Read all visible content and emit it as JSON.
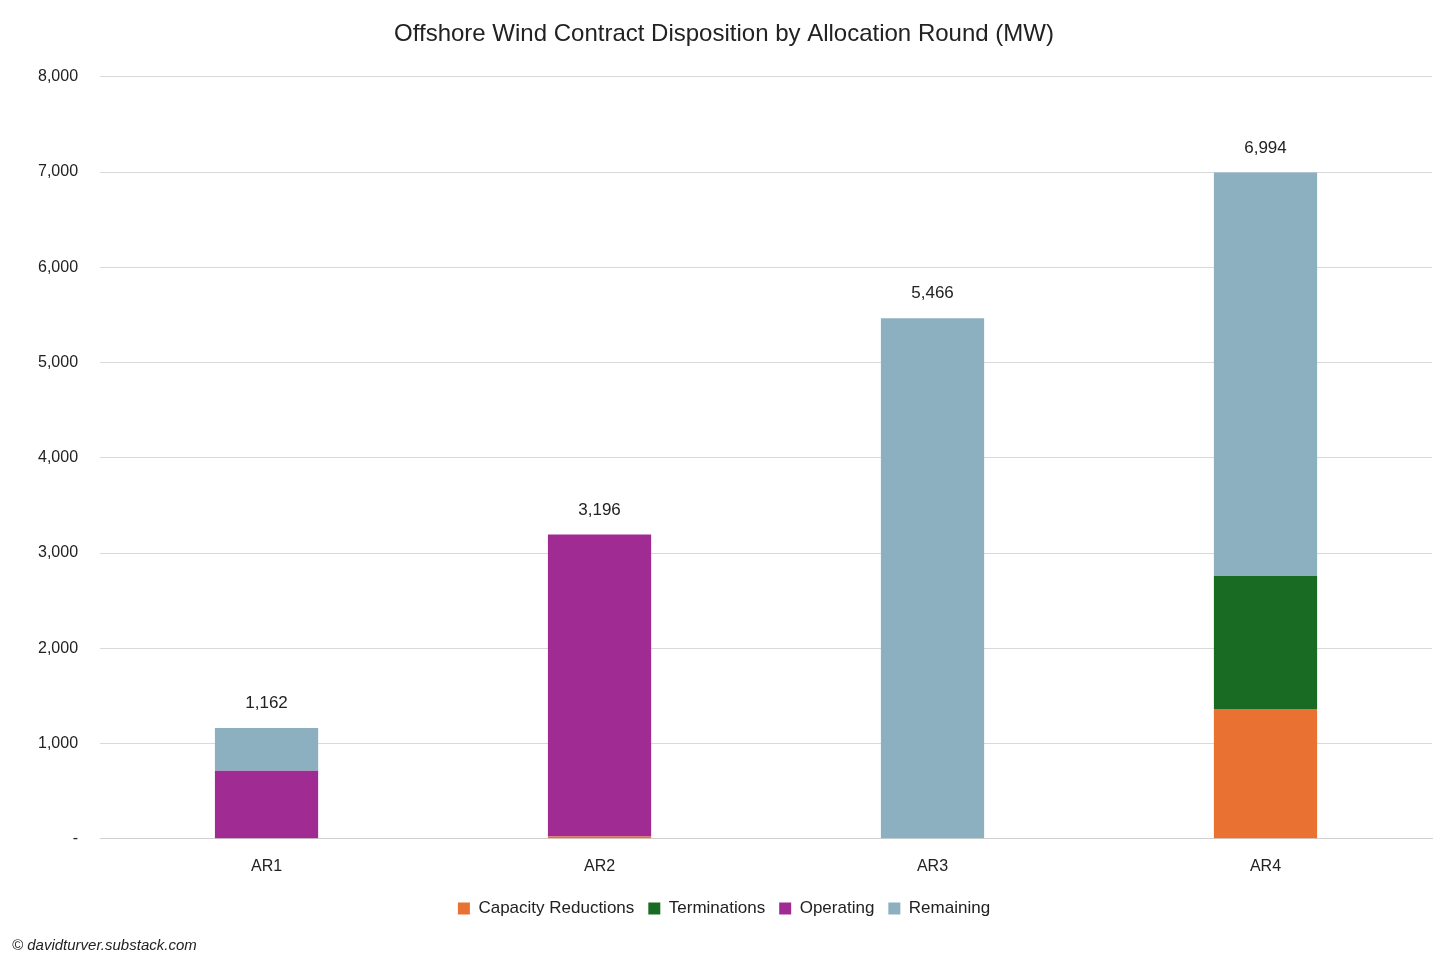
{
  "chart_data": {
    "type": "bar",
    "title": "Offshore Wind Contract Disposition by Allocation Round (MW)",
    "categories": [
      "AR1",
      "AR2",
      "AR3",
      "AR4"
    ],
    "series": [
      {
        "name": "Capacity Reductions",
        "color": "#e97132",
        "values": [
          0,
          24,
          0,
          1364
        ]
      },
      {
        "name": "Terminations",
        "color": "#196b24",
        "values": [
          0,
          0,
          0,
          1396
        ]
      },
      {
        "name": "Operating",
        "color": "#a02b93",
        "values": [
          714,
          3172,
          0,
          0
        ]
      },
      {
        "name": "Remaining",
        "color": "#8cb0bf",
        "values": [
          448,
          0,
          5466,
          4234
        ]
      }
    ],
    "totals": {
      "values": [
        1162,
        3196,
        5466,
        6994
      ],
      "value_labels": [
        "1,162",
        "3,196",
        "5,466",
        "6,994"
      ]
    },
    "stacked": true,
    "ylim": [
      0,
      8000
    ],
    "yticks": [
      {
        "value": 0,
        "label": "-"
      },
      {
        "value": 1000,
        "label": "1,000"
      },
      {
        "value": 2000,
        "label": "2,000"
      },
      {
        "value": 3000,
        "label": "3,000"
      },
      {
        "value": 4000,
        "label": "4,000"
      },
      {
        "value": 5000,
        "label": "5,000"
      },
      {
        "value": 6000,
        "label": "6,000"
      },
      {
        "value": 7000,
        "label": "7,000"
      },
      {
        "value": 8000,
        "label": "8,000"
      }
    ],
    "grid": true,
    "legend": "bottom",
    "footer": "© davidturver.substack.com"
  }
}
